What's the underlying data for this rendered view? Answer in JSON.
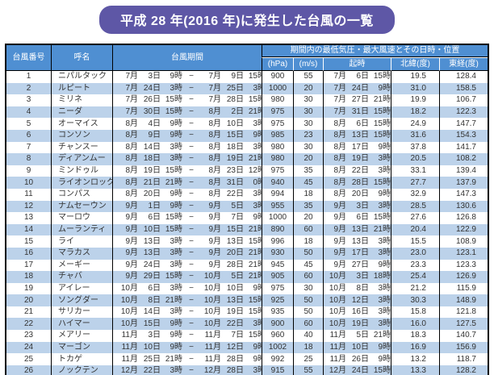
{
  "title": "平成 28 年(2016 年)に発生した台風の一覧",
  "colors": {
    "title_bg": "#5e57a6",
    "header_bg": "#4f8fd2",
    "band_bg": "#bcd2ea"
  },
  "table": {
    "headers": {
      "typhoon_number": "台風番号",
      "name": "呼名",
      "period": "台風期間",
      "group": "期間内の最低気圧・最大風速とその日時・位置",
      "pressure_unit": "(hPa)",
      "wind_unit": "(m/s)",
      "time": "起時",
      "latitude": "北緯(度)",
      "longitude": "東経(度)"
    },
    "period_separator": "−",
    "rows": [
      {
        "no": "1",
        "name": "ニパルタック",
        "period": [
          "7月",
          "3日",
          "9時",
          "7月",
          "9日",
          "15時"
        ],
        "hpa": "900",
        "ms": "55",
        "at": [
          "7月",
          "6日",
          "15時"
        ],
        "lat": "19.5",
        "lon": "128.4"
      },
      {
        "no": "2",
        "name": "ルピート",
        "period": [
          "7月",
          "24日",
          "3時",
          "7月",
          "25日",
          "3時"
        ],
        "hpa": "1000",
        "ms": "20",
        "at": [
          "7月",
          "24日",
          "9時"
        ],
        "lat": "31.0",
        "lon": "158.5"
      },
      {
        "no": "3",
        "name": "ミリネ",
        "period": [
          "7月",
          "26日",
          "15時",
          "7月",
          "28日",
          "15時"
        ],
        "hpa": "980",
        "ms": "30",
        "at": [
          "7月",
          "27日",
          "21時"
        ],
        "lat": "19.9",
        "lon": "106.7"
      },
      {
        "no": "4",
        "name": "ニーダ",
        "period": [
          "7月",
          "30日",
          "15時",
          "8月",
          "2日",
          "21時"
        ],
        "hpa": "975",
        "ms": "30",
        "at": [
          "7月",
          "31日",
          "15時"
        ],
        "lat": "18.2",
        "lon": "122.3"
      },
      {
        "no": "5",
        "name": "オーマイス",
        "period": [
          "8月",
          "4日",
          "9時",
          "8月",
          "10日",
          "3時"
        ],
        "hpa": "975",
        "ms": "30",
        "at": [
          "8月",
          "6日",
          "15時"
        ],
        "lat": "24.9",
        "lon": "147.7"
      },
      {
        "no": "6",
        "name": "コンソン",
        "period": [
          "8月",
          "9日",
          "9時",
          "8月",
          "15日",
          "9時"
        ],
        "hpa": "985",
        "ms": "23",
        "at": [
          "8月",
          "13日",
          "15時"
        ],
        "lat": "31.6",
        "lon": "154.3"
      },
      {
        "no": "7",
        "name": "チャンスー",
        "period": [
          "8月",
          "14日",
          "3時",
          "8月",
          "18日",
          "3時"
        ],
        "hpa": "980",
        "ms": "30",
        "at": [
          "8月",
          "17日",
          "9時"
        ],
        "lat": "37.8",
        "lon": "141.7"
      },
      {
        "no": "8",
        "name": "ディアンムー",
        "period": [
          "8月",
          "18日",
          "3時",
          "8月",
          "19日",
          "21時"
        ],
        "hpa": "980",
        "ms": "20",
        "at": [
          "8月",
          "19日",
          "3時"
        ],
        "lat": "20.5",
        "lon": "108.2"
      },
      {
        "no": "9",
        "name": "ミンドゥル",
        "period": [
          "8月",
          "19日",
          "15時",
          "8月",
          "23日",
          "12時"
        ],
        "hpa": "975",
        "ms": "35",
        "at": [
          "8月",
          "22日",
          "3時"
        ],
        "lat": "33.1",
        "lon": "139.4"
      },
      {
        "no": "10",
        "name": "ライオンロック",
        "period": [
          "8月",
          "21日",
          "21時",
          "8月",
          "31日",
          "0時"
        ],
        "hpa": "940",
        "ms": "45",
        "at": [
          "8月",
          "28日",
          "15時"
        ],
        "lat": "27.7",
        "lon": "137.9"
      },
      {
        "no": "11",
        "name": "コンパス",
        "period": [
          "8月",
          "20日",
          "9時",
          "8月",
          "22日",
          "3時"
        ],
        "hpa": "994",
        "ms": "18",
        "at": [
          "8月",
          "20日",
          "9時"
        ],
        "lat": "32.9",
        "lon": "147.3"
      },
      {
        "no": "12",
        "name": "ナムセーウン",
        "period": [
          "9月",
          "1日",
          "9時",
          "9月",
          "5日",
          "3時"
        ],
        "hpa": "955",
        "ms": "35",
        "at": [
          "9月",
          "3日",
          "3時"
        ],
        "lat": "28.5",
        "lon": "130.6"
      },
      {
        "no": "13",
        "name": "マーロウ",
        "period": [
          "9月",
          "6日",
          "15時",
          "9月",
          "7日",
          "9時"
        ],
        "hpa": "1000",
        "ms": "20",
        "at": [
          "9月",
          "6日",
          "15時"
        ],
        "lat": "27.6",
        "lon": "126.8"
      },
      {
        "no": "14",
        "name": "ムーランティ",
        "period": [
          "9月",
          "10日",
          "15時",
          "9月",
          "15日",
          "21時"
        ],
        "hpa": "890",
        "ms": "60",
        "at": [
          "9月",
          "13日",
          "21時"
        ],
        "lat": "20.4",
        "lon": "122.9"
      },
      {
        "no": "15",
        "name": "ライ",
        "period": [
          "9月",
          "13日",
          "3時",
          "9月",
          "13日",
          "15時"
        ],
        "hpa": "996",
        "ms": "18",
        "at": [
          "9月",
          "13日",
          "3時"
        ],
        "lat": "15.5",
        "lon": "108.9"
      },
      {
        "no": "16",
        "name": "マラカス",
        "period": [
          "9月",
          "13日",
          "3時",
          "9月",
          "20日",
          "21時"
        ],
        "hpa": "930",
        "ms": "50",
        "at": [
          "9月",
          "17日",
          "3時"
        ],
        "lat": "23.0",
        "lon": "123.1"
      },
      {
        "no": "17",
        "name": "メーギー",
        "period": [
          "9月",
          "24日",
          "3時",
          "9月",
          "28日",
          "21時"
        ],
        "hpa": "945",
        "ms": "45",
        "at": [
          "9月",
          "27日",
          "9時"
        ],
        "lat": "23.3",
        "lon": "123.3"
      },
      {
        "no": "18",
        "name": "チャバ",
        "period": [
          "9月",
          "29日",
          "15時",
          "10月",
          "5日",
          "21時"
        ],
        "hpa": "905",
        "ms": "60",
        "at": [
          "10月",
          "3日",
          "18時"
        ],
        "lat": "25.4",
        "lon": "126.9"
      },
      {
        "no": "19",
        "name": "アイレー",
        "period": [
          "10月",
          "6日",
          "3時",
          "10月",
          "10日",
          "9時"
        ],
        "hpa": "975",
        "ms": "30",
        "at": [
          "10月",
          "8日",
          "3時"
        ],
        "lat": "21.2",
        "lon": "115.9"
      },
      {
        "no": "20",
        "name": "ソングダー",
        "period": [
          "10月",
          "8日",
          "21時",
          "10月",
          "13日",
          "15時"
        ],
        "hpa": "925",
        "ms": "50",
        "at": [
          "10月",
          "12日",
          "3時"
        ],
        "lat": "30.3",
        "lon": "148.9"
      },
      {
        "no": "21",
        "name": "サリカー",
        "period": [
          "10月",
          "14日",
          "3時",
          "10月",
          "19日",
          "15時"
        ],
        "hpa": "935",
        "ms": "50",
        "at": [
          "10月",
          "16日",
          "3時"
        ],
        "lat": "15.8",
        "lon": "121.8"
      },
      {
        "no": "22",
        "name": "ハイマー",
        "period": [
          "10月",
          "15日",
          "9時",
          "10月",
          "22日",
          "3時"
        ],
        "hpa": "900",
        "ms": "60",
        "at": [
          "10月",
          "19日",
          "3時"
        ],
        "lat": "16.0",
        "lon": "127.5"
      },
      {
        "no": "23",
        "name": "メアリー",
        "period": [
          "11月",
          "3日",
          "9時",
          "11月",
          "7日",
          "15時"
        ],
        "hpa": "960",
        "ms": "40",
        "at": [
          "11月",
          "5日",
          "21時"
        ],
        "lat": "18.3",
        "lon": "140.7"
      },
      {
        "no": "24",
        "name": "マーゴン",
        "period": [
          "11月",
          "10日",
          "9時",
          "11月",
          "12日",
          "9時"
        ],
        "hpa": "1002",
        "ms": "18",
        "at": [
          "11月",
          "10日",
          "9時"
        ],
        "lat": "16.9",
        "lon": "156.9"
      },
      {
        "no": "25",
        "name": "トカゲ",
        "period": [
          "11月",
          "25日",
          "21時",
          "11月",
          "28日",
          "9時"
        ],
        "hpa": "992",
        "ms": "25",
        "at": [
          "11月",
          "26日",
          "9時"
        ],
        "lat": "13.2",
        "lon": "118.7"
      },
      {
        "no": "26",
        "name": "ノックテン",
        "period": [
          "12月",
          "22日",
          "3時",
          "12月",
          "28日",
          "3時"
        ],
        "hpa": "915",
        "ms": "55",
        "at": [
          "12月",
          "24日",
          "15時"
        ],
        "lat": "13.3",
        "lon": "128.2"
      }
    ]
  }
}
